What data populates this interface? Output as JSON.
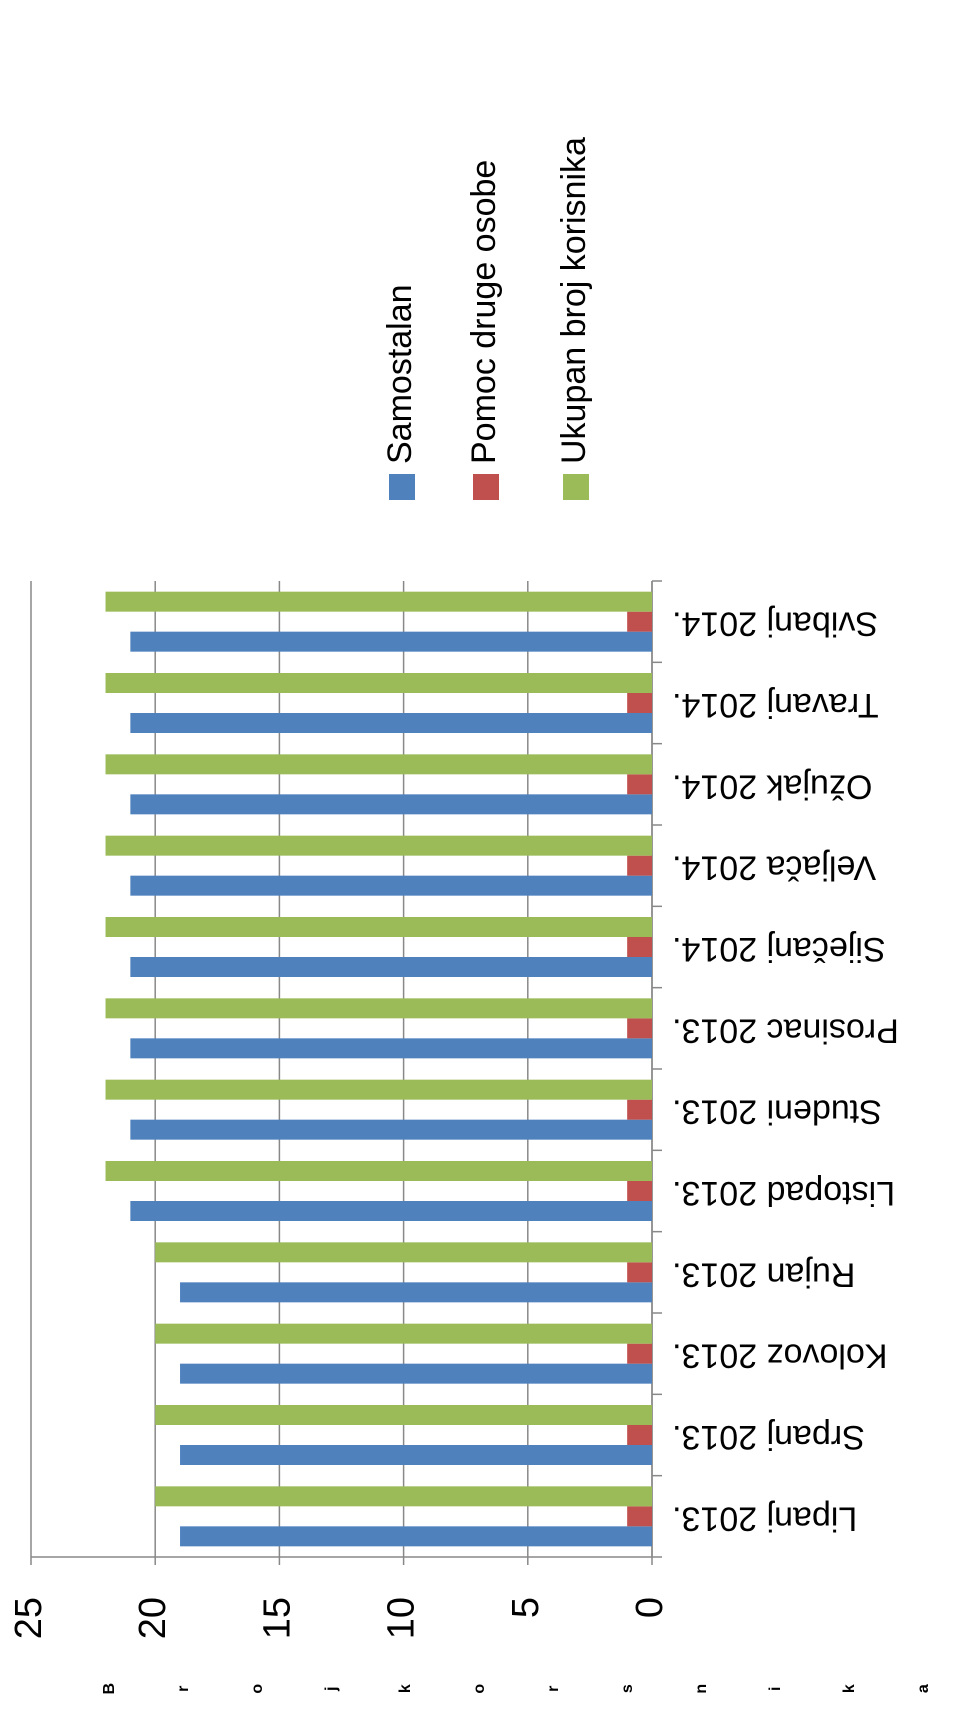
{
  "chart_data": {
    "type": "bar",
    "y_label": "B r o j   k o r s n i k a",
    "categories": [
      "Lipanj 2013.",
      "Srpanj 2013.",
      "Kolovoz 2013.",
      "Rujan 2013.",
      "Listopad 2013.",
      "Studeni 2013.",
      "Prosinac 2013.",
      "Siječanj 2014.",
      "Veljača 2014.",
      "Ožujak 2014.",
      "Travanj 2014.",
      "Svibanj 2014."
    ],
    "series": [
      {
        "name": "Samostalan",
        "color": "#4f81bd",
        "values": [
          19,
          19,
          19,
          19,
          21,
          21,
          21,
          21,
          21,
          21,
          21,
          21
        ]
      },
      {
        "name": "Pomoc druge osobe",
        "color": "#c0504d",
        "values": [
          1,
          1,
          1,
          1,
          1,
          1,
          1,
          1,
          1,
          1,
          1,
          1
        ]
      },
      {
        "name": "Ukupan broj korisnika",
        "color": "#9bbb59",
        "values": [
          20,
          20,
          20,
          20,
          22,
          22,
          22,
          22,
          22,
          22,
          22,
          22
        ]
      }
    ],
    "ylim": [
      0,
      25
    ],
    "yticks": [
      0,
      5,
      10,
      15,
      20,
      25
    ],
    "grid": true,
    "legend": "right"
  }
}
